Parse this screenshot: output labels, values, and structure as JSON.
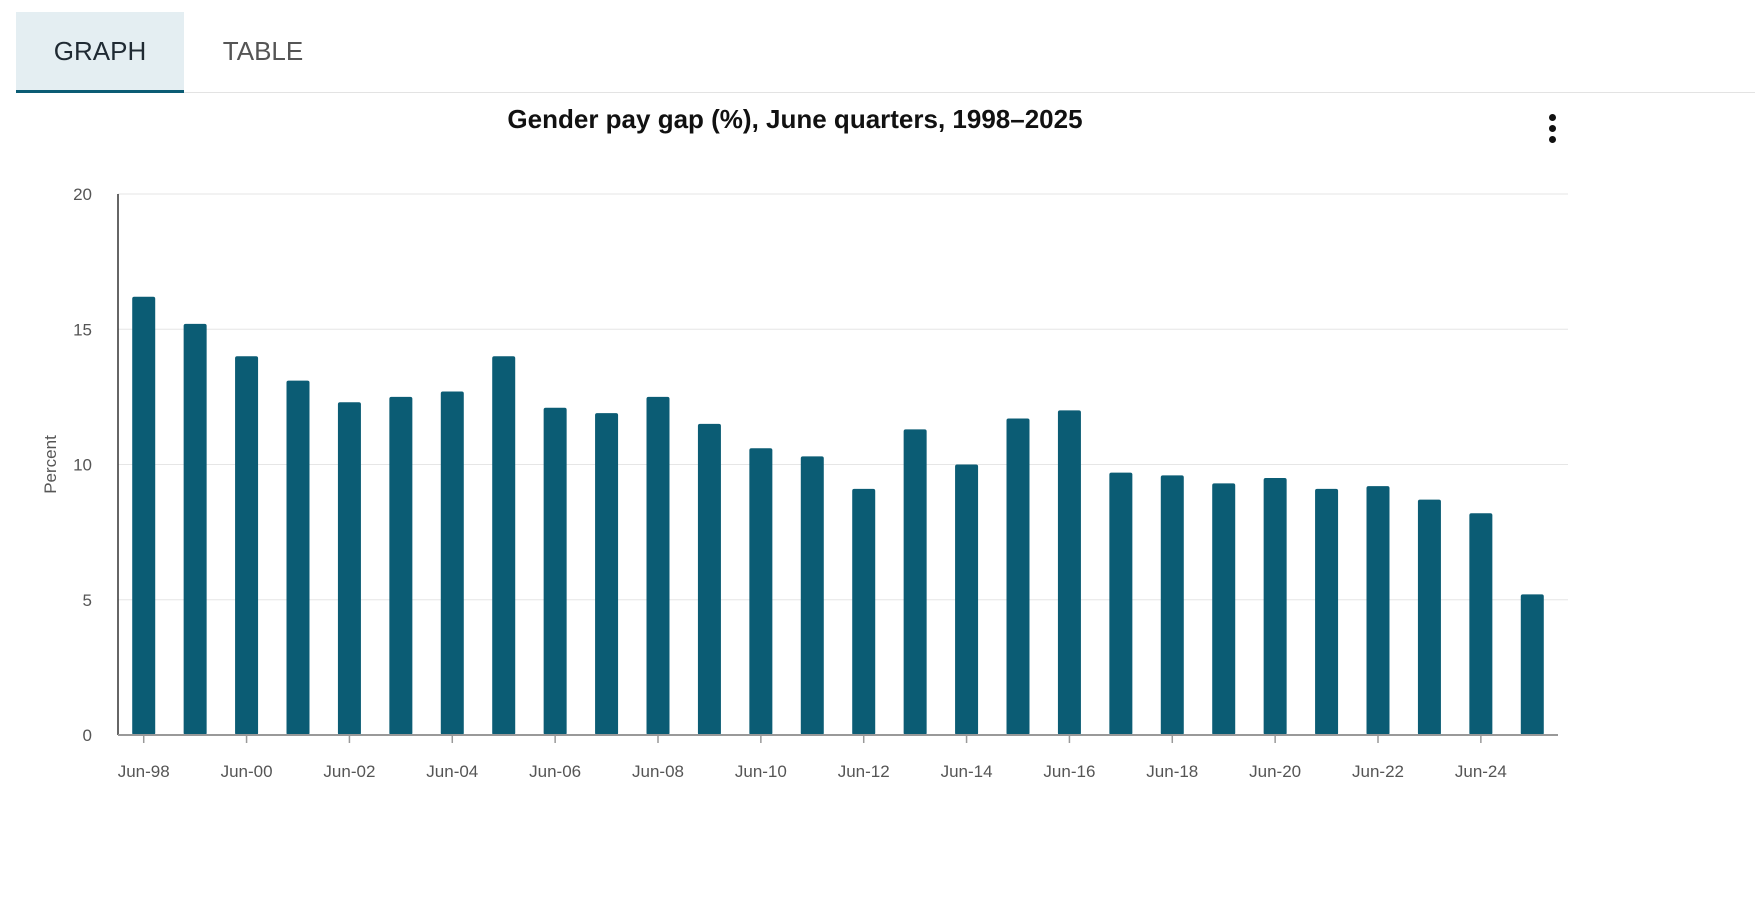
{
  "tabs": [
    {
      "label": "GRAPH",
      "active": true
    },
    {
      "label": "TABLE",
      "active": false
    }
  ],
  "menu_icon": "vertical-ellipsis-icon",
  "colors": {
    "bar": "#0b5c74",
    "grid": "#e6e6e6",
    "axis": "#333333",
    "tab_active_bg": "#e4eef2"
  },
  "chart_data": {
    "type": "bar",
    "title": "Gender pay gap (%), June quarters, 1998–2025",
    "xlabel": "",
    "ylabel": "Percent",
    "ylim": [
      0,
      20
    ],
    "yticks": [
      0,
      5,
      10,
      15,
      20
    ],
    "grid": true,
    "categories": [
      "Jun-98",
      "Jun-99",
      "Jun-00",
      "Jun-01",
      "Jun-02",
      "Jun-03",
      "Jun-04",
      "Jun-05",
      "Jun-06",
      "Jun-07",
      "Jun-08",
      "Jun-09",
      "Jun-10",
      "Jun-11",
      "Jun-12",
      "Jun-13",
      "Jun-14",
      "Jun-15",
      "Jun-16",
      "Jun-17",
      "Jun-18",
      "Jun-19",
      "Jun-20",
      "Jun-21",
      "Jun-22",
      "Jun-23",
      "Jun-24",
      "Jun-25"
    ],
    "xtick_labels": [
      "Jun-98",
      "Jun-00",
      "Jun-02",
      "Jun-04",
      "Jun-06",
      "Jun-08",
      "Jun-10",
      "Jun-12",
      "Jun-14",
      "Jun-16",
      "Jun-18",
      "Jun-20",
      "Jun-22",
      "Jun-24"
    ],
    "values": [
      16.2,
      15.2,
      14.0,
      13.1,
      12.3,
      12.5,
      12.7,
      14.0,
      12.1,
      11.9,
      12.5,
      11.5,
      10.6,
      10.3,
      9.1,
      11.3,
      10.0,
      11.7,
      12.0,
      9.7,
      9.6,
      9.3,
      9.5,
      9.1,
      9.2,
      8.7,
      8.2,
      5.2
    ]
  }
}
